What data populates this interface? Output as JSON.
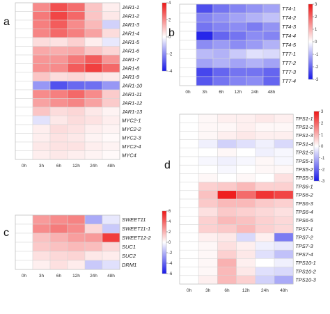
{
  "chart_data": [
    {
      "type": "heatmap",
      "panel_label": "a",
      "columns": [
        "0h",
        "3h",
        "6h",
        "12h",
        "24h",
        "48h"
      ],
      "rows": [
        "JAR1-1",
        "JAR1-2",
        "JAR1-3",
        "JAR1-4",
        "JAR1-5",
        "JAR1-6",
        "JAR1-7",
        "JAR1-8",
        "JAR1-9",
        "JAR1-10",
        "JAR1-11",
        "JAR1-12",
        "JAR1-13",
        "MYC2-1",
        "MYC2-2",
        "MYC2-3",
        "MYC2-4",
        "MYC4"
      ],
      "values": [
        [
          0,
          2.0,
          3.0,
          2.5,
          1.0,
          0.3
        ],
        [
          0,
          2.3,
          3.2,
          2.6,
          1.0,
          0.4
        ],
        [
          0,
          2.2,
          2.8,
          2.0,
          1.2,
          -0.8
        ],
        [
          0,
          2.1,
          2.6,
          2.2,
          1.6,
          0.6
        ],
        [
          0,
          0.6,
          0.5,
          0.8,
          0.3,
          -0.4
        ],
        [
          0,
          1.5,
          1.4,
          1.5,
          1.0,
          0.7
        ],
        [
          0,
          1.8,
          1.8,
          2.3,
          2.8,
          1.8
        ],
        [
          0,
          1.9,
          2.0,
          2.8,
          3.3,
          2.6
        ],
        [
          0,
          1.0,
          0.6,
          0.7,
          0.5,
          0.4
        ],
        [
          0,
          -1.8,
          -3.0,
          -2.6,
          -2.5,
          -1.8
        ],
        [
          0,
          2.0,
          2.2,
          2.6,
          2.0,
          0.9
        ],
        [
          0,
          1.6,
          1.9,
          2.1,
          1.6,
          0.9
        ],
        [
          0,
          1.0,
          0.6,
          0.7,
          0.4,
          0.2
        ],
        [
          0,
          -0.5,
          0.4,
          0.6,
          0.5,
          0.3
        ],
        [
          0,
          0.3,
          0.6,
          0.5,
          0.3,
          0.2
        ],
        [
          0,
          0.3,
          0.5,
          0.4,
          0.2,
          0.1
        ],
        [
          0,
          0.4,
          0.5,
          0.5,
          0.3,
          0.2
        ],
        [
          0,
          0.3,
          0.4,
          0.3,
          0.2,
          0.1
        ]
      ],
      "scale": {
        "min": -4,
        "max": 4,
        "ticks": [
          4,
          2,
          0,
          -2,
          -4
        ]
      }
    },
    {
      "type": "heatmap",
      "panel_label": "b",
      "columns": [
        "0h",
        "3h",
        "6h",
        "12h",
        "24h",
        "48h"
      ],
      "rows": [
        "TT4-1",
        "TT4-2",
        "TT4-3",
        "TT4-4",
        "TT4-5",
        "TT7-1",
        "TT7-2",
        "TT7-3",
        "TT7-4"
      ],
      "values": [
        [
          0,
          -2.3,
          -1.8,
          -1.6,
          -1.4,
          -1.2
        ],
        [
          0,
          -1.6,
          -1.4,
          -1.2,
          -1.0,
          -0.8
        ],
        [
          0,
          -1.8,
          -1.6,
          -1.5,
          -1.7,
          -1.4
        ],
        [
          0,
          -2.8,
          -2.0,
          -1.8,
          -1.5,
          -1.6
        ],
        [
          0,
          -1.5,
          -1.3,
          -1.5,
          -1.3,
          -1.0
        ],
        [
          0,
          -0.9,
          -1.0,
          -0.7,
          -0.4,
          -0.5
        ],
        [
          0,
          -1.2,
          -1.0,
          -1.2,
          -1.0,
          -1.2
        ],
        [
          0,
          -2.4,
          -2.0,
          -1.8,
          -1.8,
          -2.0
        ],
        [
          0,
          -2.2,
          -1.8,
          -1.6,
          -1.5,
          -2.0
        ]
      ],
      "scale": {
        "min": -3,
        "max": 3,
        "ticks": [
          3,
          2,
          1,
          0,
          -1,
          -2,
          -3
        ]
      }
    },
    {
      "type": "heatmap",
      "panel_label": "c",
      "columns": [
        "0h",
        "3h",
        "6h",
        "12h",
        "24h",
        "48h"
      ],
      "rows": [
        "SWEET11",
        "SWEET11-1",
        "SWEET12-2",
        "SUC1",
        "SUC2",
        "DRM1"
      ],
      "values": [
        [
          0,
          2.6,
          3.0,
          3.2,
          -2.2,
          -0.6
        ],
        [
          0,
          3.0,
          3.4,
          3.0,
          1.0,
          -1.4
        ],
        [
          0,
          1.6,
          2.0,
          2.5,
          2.6,
          5.0
        ],
        [
          0,
          1.4,
          1.6,
          1.8,
          1.7,
          1.0
        ],
        [
          0,
          0.8,
          1.0,
          1.1,
          0.6,
          0.5
        ],
        [
          0,
          0.4,
          0.8,
          0.5,
          -1.4,
          -0.8
        ]
      ],
      "scale": {
        "min": -6,
        "max": 6,
        "ticks": [
          6,
          4,
          2,
          0,
          -2,
          -4,
          -6
        ]
      }
    },
    {
      "type": "heatmap",
      "panel_label": "d",
      "columns": [
        "0h",
        "3h",
        "6h",
        "12h",
        "24h",
        "48h"
      ],
      "rows": [
        "TPS1-1",
        "TPS1-2",
        "TPS1-3",
        "TPS1-4",
        "TPS1-5",
        "TPS5-1",
        "TPS5-2",
        "TPS5-3",
        "TPS6-1",
        "TPS6-2",
        "TPS6-3",
        "TPS6-4",
        "TPS6-5",
        "TPS7-1",
        "TPS7-2",
        "TPS7-3",
        "TPS7-4",
        "TPS10-1",
        "TPS10-2",
        "TPS10-3"
      ],
      "values": [
        [
          0,
          0.1,
          0.2,
          0.2,
          0.3,
          0.2
        ],
        [
          0,
          0.1,
          0.1,
          0.2,
          0.1,
          0.1
        ],
        [
          0,
          0.1,
          0.2,
          0.3,
          0.2,
          0.2
        ],
        [
          0,
          -0.2,
          -0.6,
          -0.4,
          -0.2,
          -0.5
        ],
        [
          0,
          0.0,
          0.1,
          0.0,
          -0.2,
          -0.1
        ],
        [
          0,
          -0.1,
          -0.2,
          -0.1,
          0.1,
          -0.1
        ],
        [
          0,
          0.0,
          -0.1,
          0.0,
          0.1,
          0.1
        ],
        [
          0,
          0.1,
          0.0,
          0.1,
          0.0,
          0.4
        ],
        [
          0,
          0.6,
          0.7,
          0.9,
          0.6,
          0.6
        ],
        [
          0,
          0.8,
          2.9,
          1.9,
          2.6,
          2.4
        ],
        [
          0,
          0.7,
          0.9,
          0.9,
          0.7,
          0.6
        ],
        [
          0,
          0.4,
          0.7,
          0.6,
          0.5,
          0.4
        ],
        [
          0,
          0.6,
          0.9,
          0.8,
          0.6,
          0.5
        ],
        [
          0,
          0.6,
          0.7,
          0.9,
          0.6,
          0.5
        ],
        [
          0,
          0.2,
          0.3,
          -0.5,
          0.2,
          -1.7
        ],
        [
          0,
          0.1,
          0.4,
          0.2,
          -0.2,
          -0.3
        ],
        [
          0,
          0.1,
          0.6,
          0.3,
          -0.4,
          -0.8
        ],
        [
          0,
          0.1,
          1.0,
          0.2,
          0.0,
          -0.2
        ],
        [
          0,
          0.1,
          0.9,
          0.3,
          -0.4,
          -0.5
        ],
        [
          0,
          0.2,
          0.9,
          0.6,
          -0.6,
          -1.1
        ]
      ],
      "scale": {
        "min": -3,
        "max": 3,
        "ticks": [
          3,
          2,
          1,
          0,
          -1,
          -2,
          -3
        ]
      }
    }
  ]
}
